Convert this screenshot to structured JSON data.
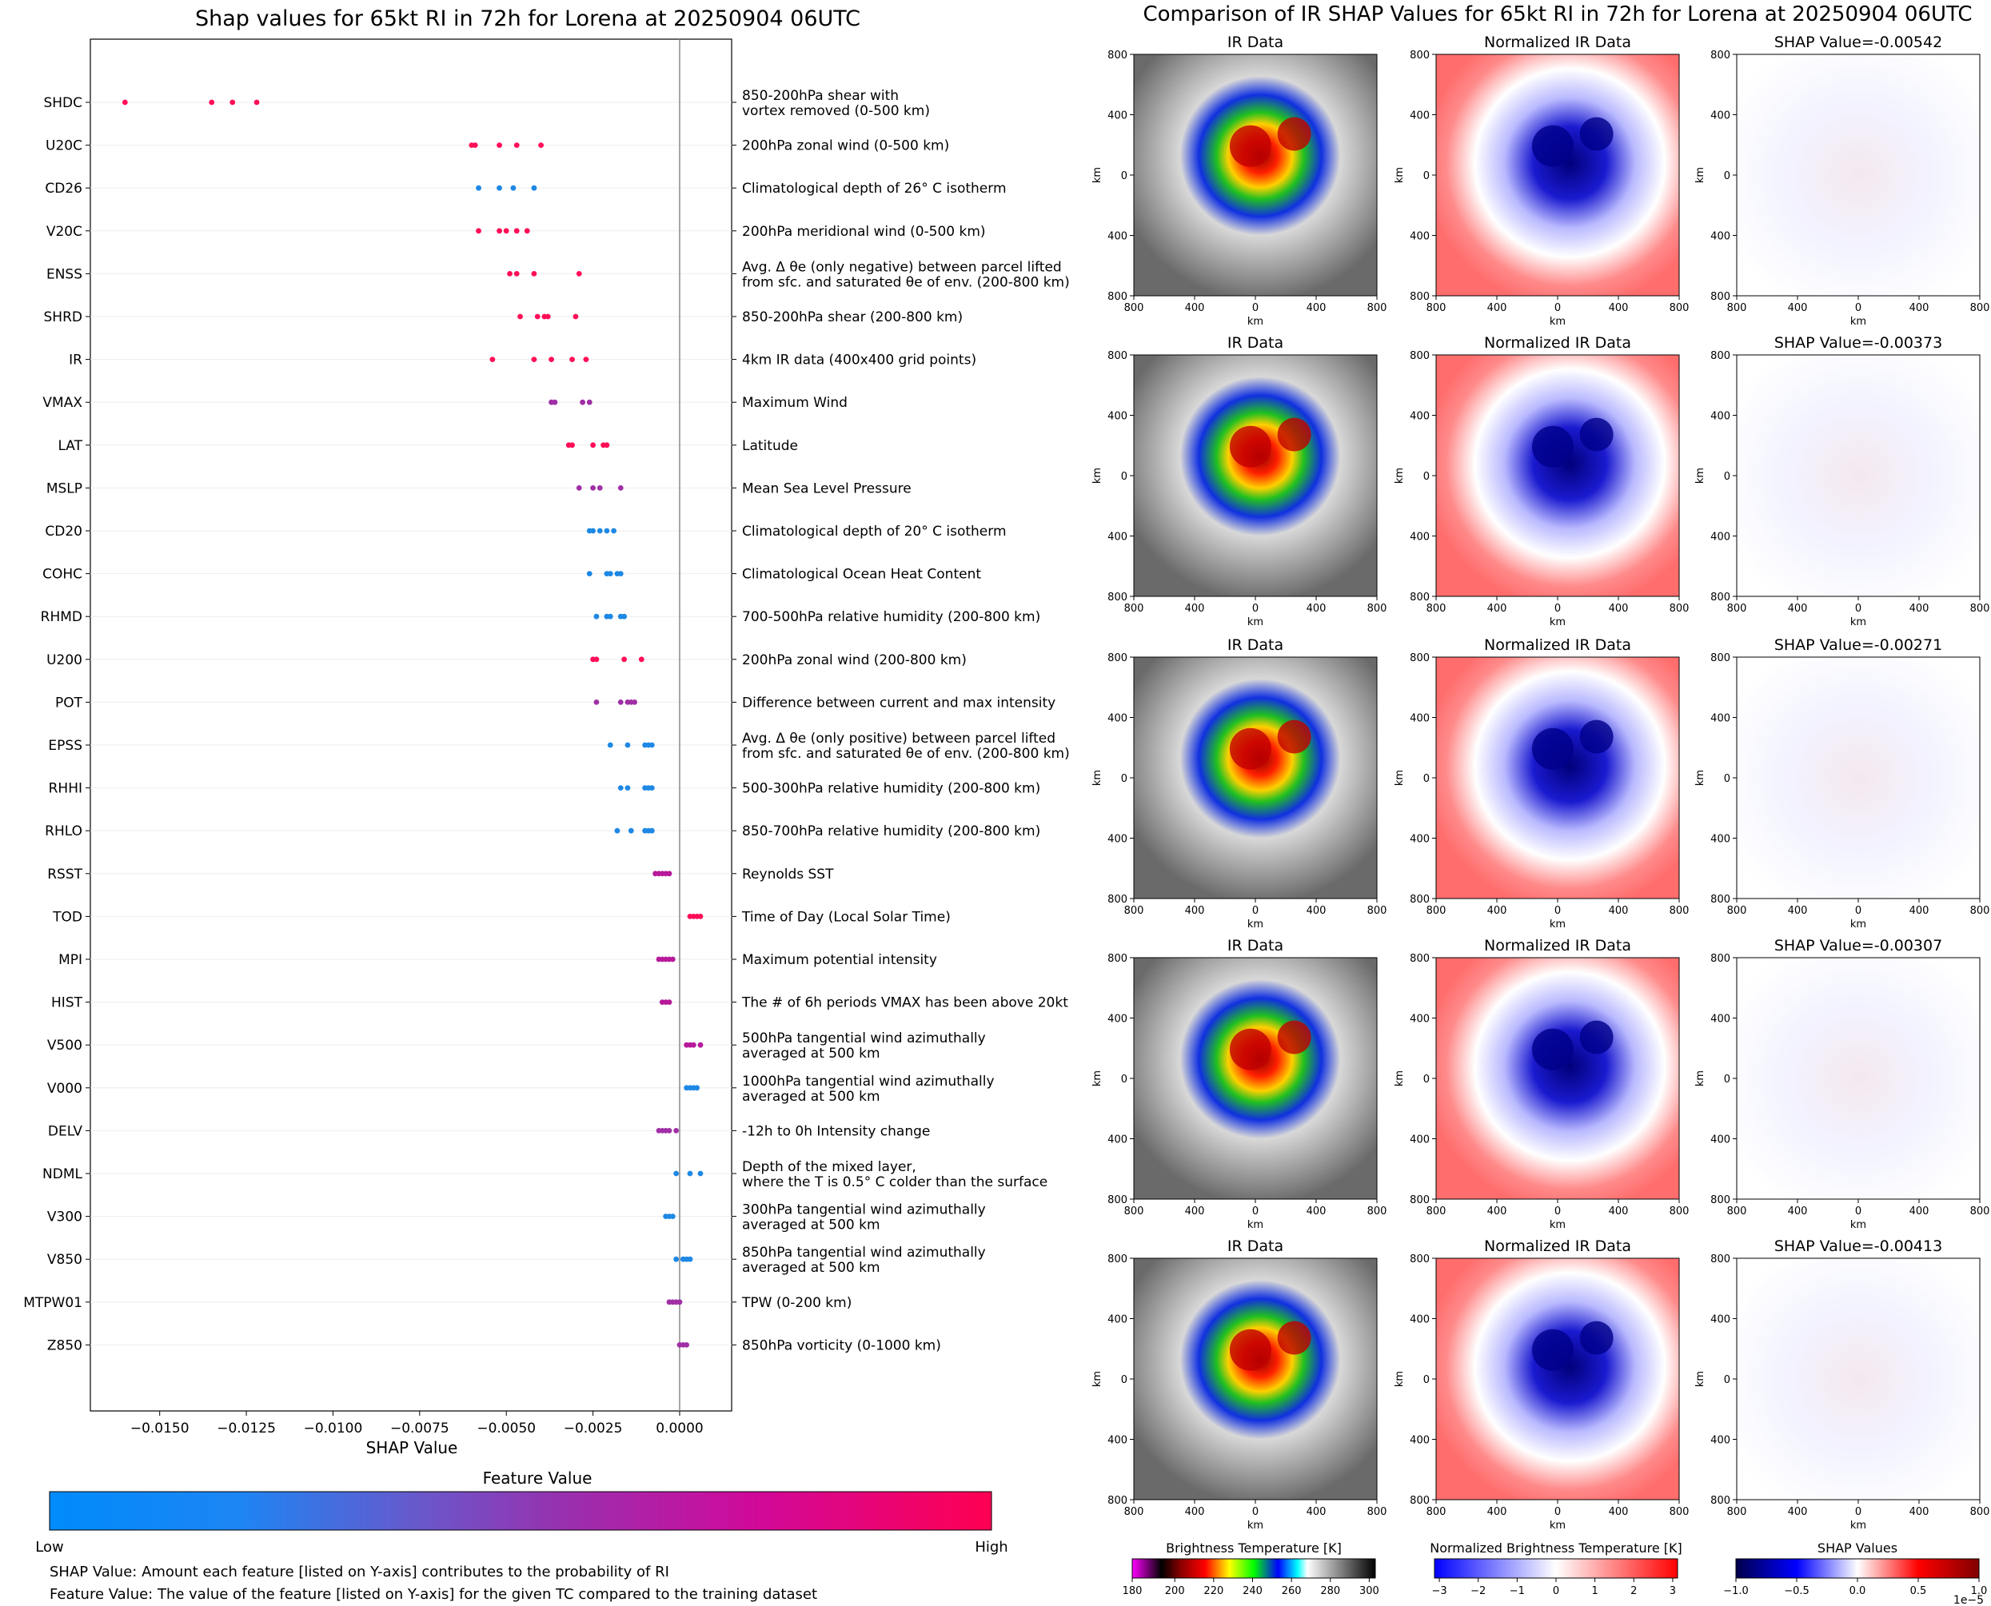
{
  "left_panel": {
    "title": "Shap values for 65kt RI in 72h for Lorena at 20250904 06UTC",
    "x_axis_label": "SHAP Value",
    "colorbar": {
      "title": "Feature Value",
      "low_label": "Low",
      "high_label": "High",
      "low_color": "#008bfb",
      "high_color": "#ff0052"
    },
    "notes": [
      "SHAP Value: Amount each feature [listed on Y-axis] contributes to the probability of RI",
      "Feature Value: The value of the feature [listed on Y-axis] for the given TC compared to the training dataset"
    ]
  },
  "right_panel": {
    "title": "Comparison of IR SHAP Values for 65kt RI in 72h for Lorena at 20250904 06UTC",
    "column_titles": [
      "IR Data",
      "Normalized IR Data"
    ],
    "shap_titles": [
      "SHAP Value=-0.00542",
      "SHAP Value=-0.00373",
      "SHAP Value=-0.00271",
      "SHAP Value=-0.00307",
      "SHAP Value=-0.00413"
    ],
    "axis_unit": "km",
    "axis_ticks": [
      "800",
      "400",
      "0",
      "400",
      "800"
    ],
    "colorbars": [
      {
        "label": "Brightness Temperature [K]",
        "ticks": [
          "180",
          "200",
          "220",
          "240",
          "260",
          "280",
          "300"
        ]
      },
      {
        "label": "Normalized Brightness Temperature [K]",
        "ticks": [
          "−3",
          "−2",
          "−1",
          "0",
          "1",
          "2",
          "3"
        ]
      },
      {
        "label": "SHAP Values",
        "ticks": [
          "−1.0",
          "−0.5",
          "0.0",
          "0.5",
          "1.0"
        ],
        "exponent": "1e−5"
      }
    ]
  },
  "chart_data": {
    "type": "scatter",
    "title": "Shap values for 65kt RI in 72h for Lorena at 20250904 06UTC",
    "xlabel": "SHAP Value",
    "xlim": [
      -0.017,
      0.0015
    ],
    "xticks": [
      -0.015,
      -0.0125,
      -0.01,
      -0.0075,
      -0.005,
      -0.0025,
      0.0
    ],
    "xtick_labels": [
      "−0.0150",
      "−0.0125",
      "−0.0100",
      "−0.0075",
      "−0.0050",
      "−0.0025",
      "0.0000"
    ],
    "features": [
      {
        "name": "SHDC",
        "description": "850-200hPa shear with\nvortex removed (0-500 km)",
        "color": "#ff0d57",
        "values": [
          -0.016,
          -0.0135,
          -0.0129,
          -0.0122
        ]
      },
      {
        "name": "U20C",
        "description": "200hPa zonal wind (0-500 km)",
        "color": "#ff0d57",
        "values": [
          -0.006,
          -0.0059,
          -0.0052,
          -0.0047,
          -0.004
        ]
      },
      {
        "name": "CD26",
        "description": "Climatological depth of 26° C isotherm",
        "color": "#1e88e5",
        "values": [
          -0.0058,
          -0.0052,
          -0.0048,
          -0.0042
        ]
      },
      {
        "name": "V20C",
        "description": "200hPa meridional wind (0-500 km)",
        "color": "#ff0d57",
        "values": [
          -0.0058,
          -0.0052,
          -0.005,
          -0.0047,
          -0.0044
        ]
      },
      {
        "name": "ENSS",
        "description": "Avg. Δ θe (only negative) between parcel lifted\nfrom sfc. and saturated θe of env. (200-800 km)",
        "color": "#ff0d57",
        "values": [
          -0.0049,
          -0.0047,
          -0.0042,
          -0.0029
        ]
      },
      {
        "name": "SHRD",
        "description": "850-200hPa shear (200-800 km)",
        "color": "#ff0d57",
        "values": [
          -0.0046,
          -0.0041,
          -0.0039,
          -0.0038,
          -0.003
        ]
      },
      {
        "name": "IR",
        "description": "4km IR data (400x400 grid points)",
        "color": "#ff0d57",
        "values": [
          -0.0054,
          -0.0042,
          -0.0037,
          -0.0031,
          -0.0027
        ]
      },
      {
        "name": "VMAX",
        "description": "Maximum Wind",
        "color": "#a02fa6",
        "values": [
          -0.0037,
          -0.0036,
          -0.0028,
          -0.0026
        ]
      },
      {
        "name": "LAT",
        "description": "Latitude",
        "color": "#ff0d57",
        "values": [
          -0.0032,
          -0.0031,
          -0.0025,
          -0.0022,
          -0.0021
        ]
      },
      {
        "name": "MSLP",
        "description": "Mean Sea Level Pressure",
        "color": "#a02fa6",
        "values": [
          -0.0029,
          -0.0025,
          -0.0023,
          -0.0017
        ]
      },
      {
        "name": "CD20",
        "description": "Climatological depth of 20° C isotherm",
        "color": "#1e88e5",
        "values": [
          -0.0026,
          -0.0025,
          -0.0023,
          -0.0021,
          -0.0019
        ]
      },
      {
        "name": "COHC",
        "description": "Climatological Ocean Heat Content",
        "color": "#1e88e5",
        "values": [
          -0.0026,
          -0.0021,
          -0.002,
          -0.0018,
          -0.0017
        ]
      },
      {
        "name": "RHMD",
        "description": "700-500hPa relative humidity (200-800 km)",
        "color": "#1e88e5",
        "values": [
          -0.0024,
          -0.0021,
          -0.002,
          -0.0017,
          -0.0016
        ]
      },
      {
        "name": "U200",
        "description": "200hPa zonal wind (200-800 km)",
        "color": "#ff0d57",
        "values": [
          -0.0025,
          -0.0024,
          -0.0016,
          -0.0011
        ]
      },
      {
        "name": "POT",
        "description": "Difference between current and max intensity",
        "color": "#a02fa6",
        "values": [
          -0.0024,
          -0.0017,
          -0.0015,
          -0.0014,
          -0.0013
        ]
      },
      {
        "name": "EPSS",
        "description": "Avg. Δ θe (only positive) between parcel lifted\nfrom sfc. and saturated θe of env. (200-800 km)",
        "color": "#1e88e5",
        "values": [
          -0.002,
          -0.0015,
          -0.001,
          -0.0009,
          -0.0008
        ]
      },
      {
        "name": "RHHI",
        "description": "500-300hPa relative humidity (200-800 km)",
        "color": "#1e88e5",
        "values": [
          -0.0017,
          -0.0015,
          -0.001,
          -0.0009,
          -0.0008
        ]
      },
      {
        "name": "RHLO",
        "description": "850-700hPa relative humidity (200-800 km)",
        "color": "#1e88e5",
        "values": [
          -0.0018,
          -0.0014,
          -0.001,
          -0.0009,
          -0.0008
        ]
      },
      {
        "name": "RSST",
        "description": "Reynolds SST",
        "color": "#b7199a",
        "values": [
          -0.0007,
          -0.0006,
          -0.0005,
          -0.0004,
          -0.0003
        ]
      },
      {
        "name": "TOD",
        "description": "Time of Day (Local Solar Time)",
        "color": "#ff0d57",
        "values": [
          0.0003,
          0.0004,
          0.0005,
          0.0006
        ]
      },
      {
        "name": "MPI",
        "description": "Maximum potential intensity",
        "color": "#b7199a",
        "values": [
          -0.0006,
          -0.0005,
          -0.0004,
          -0.0003,
          -0.0002
        ]
      },
      {
        "name": "HIST",
        "description": "The # of 6h periods VMAX has been above 20kt",
        "color": "#b7199a",
        "values": [
          -0.0005,
          -0.0004,
          -0.0003
        ]
      },
      {
        "name": "V500",
        "description": "500hPa tangential wind azimuthally\naveraged at 500 km",
        "color": "#b7199a",
        "values": [
          0.0002,
          0.0003,
          0.0004,
          0.0006
        ]
      },
      {
        "name": "V000",
        "description": "1000hPa tangential wind azimuthally\naveraged at 500 km",
        "color": "#1e88e5",
        "values": [
          0.0002,
          0.0003,
          0.0004,
          0.0005
        ]
      },
      {
        "name": "DELV",
        "description": "-12h to 0h Intensity change",
        "color": "#a02fa6",
        "values": [
          -0.0006,
          -0.0005,
          -0.0004,
          -0.0003,
          -0.0001
        ]
      },
      {
        "name": "NDML",
        "description": "Depth of the mixed layer,\nwhere the T is 0.5° C colder than the surface",
        "color": "#1e88e5",
        "values": [
          -0.0001,
          0.0003,
          0.0006
        ]
      },
      {
        "name": "V300",
        "description": "300hPa tangential wind azimuthally\naveraged at 500 km",
        "color": "#1e88e5",
        "values": [
          -0.0004,
          -0.0003,
          -0.0002
        ]
      },
      {
        "name": "V850",
        "description": "850hPa tangential wind azimuthally\naveraged at 500 km",
        "color": "#1e88e5",
        "values": [
          -0.0001,
          0.0001,
          0.0002,
          0.0003
        ]
      },
      {
        "name": "MTPW01",
        "description": "TPW (0-200 km)",
        "color": "#a02fa6",
        "values": [
          -0.0003,
          -0.0002,
          -0.0001,
          0.0
        ]
      },
      {
        "name": "Z850",
        "description": "850hPa vorticity (0-1000 km)",
        "color": "#a02fa6",
        "values": [
          0.0,
          0.0001,
          0.0002
        ]
      }
    ]
  }
}
